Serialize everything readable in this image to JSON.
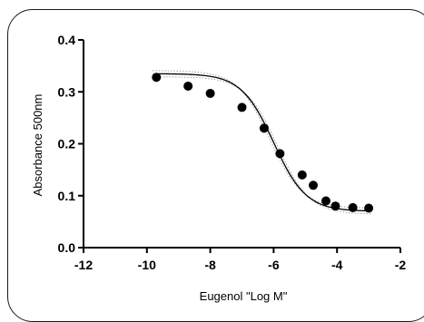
{
  "chart_data": {
    "type": "scatter",
    "title": "",
    "xlabel": "Eugenol \"Log M\"",
    "ylabel": "Absorbance 500nm",
    "xlim": [
      -12,
      -2
    ],
    "ylim": [
      0,
      0.4
    ],
    "xticks": [
      -12,
      -10,
      -8,
      -6,
      -4,
      -2
    ],
    "yticks": [
      0.0,
      0.1,
      0.2,
      0.3,
      0.4
    ],
    "xtick_labels": [
      "-12",
      "-10",
      "-8",
      "-6",
      "-4",
      "-2"
    ],
    "ytick_labels": [
      "0.0",
      "0.1",
      "0.2",
      "0.3",
      "0.4"
    ],
    "grid": false,
    "legend": "none",
    "series": [
      {
        "x": [
          -9.7,
          -8.7,
          -8.0,
          -7.0,
          -6.3,
          -5.8,
          -5.1,
          -4.75,
          -4.35,
          -4.05,
          -3.5,
          -3.0
        ],
        "y": [
          0.328,
          0.311,
          0.297,
          0.27,
          0.23,
          0.181,
          0.14,
          0.12,
          0.09,
          0.08,
          0.077,
          0.076
        ]
      }
    ],
    "fit_curve": {
      "model": "four-parameter logistic",
      "top": 0.335,
      "bottom": 0.07,
      "log_ic50": -6.0,
      "hill_slope": -0.85
    },
    "confidence_band": true,
    "colors": {
      "points": "#000000",
      "curve": "#000000",
      "band": "#9a9a9a"
    }
  }
}
